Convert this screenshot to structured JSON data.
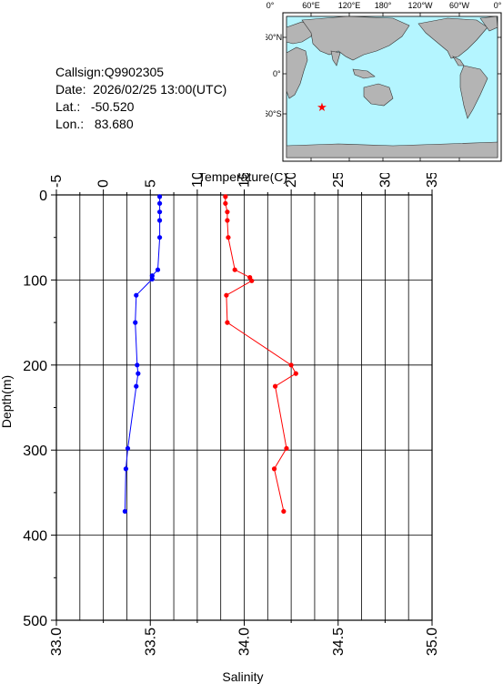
{
  "info": {
    "callsign_label": "Callsign:",
    "callsign": "Q9902305",
    "date_label": "Date:",
    "date": "2026/02/25 13:00(UTC)",
    "lat_label": "Lat.:",
    "lat": "-50.520",
    "lon_label": "Lon.:",
    "lon": "83.680"
  },
  "map": {
    "top_labels": [
      "0°",
      "60°E",
      "120°E",
      "180°",
      "120°W",
      "60°W",
      "0°"
    ],
    "left_labels": [
      "60°N",
      "0°",
      "60°S"
    ],
    "ocean_color": "#b4f5ff",
    "land_color": "#b4b4b4",
    "marker_color": "#ff0000",
    "marker_icon": "star-icon"
  },
  "chart_data": {
    "type": "line",
    "ylabel": "Depth(m)",
    "y_ticks": [
      "0",
      "100",
      "200",
      "300",
      "400",
      "500"
    ],
    "ylim": [
      0,
      500
    ],
    "y_reversed": true,
    "temperature_axis": {
      "label": "Temperature(C)",
      "ticks": [
        "-5",
        "0",
        "5",
        "10",
        "15",
        "20",
        "25",
        "30",
        "35"
      ],
      "range": [
        -5,
        35
      ]
    },
    "salinity_axis": {
      "label": "Salinity",
      "ticks": [
        "33.0",
        "33.5",
        "34.0",
        "34.5",
        "35.0"
      ],
      "range": [
        33.0,
        35.0
      ]
    },
    "grid": true,
    "series": [
      {
        "axis": "salinity",
        "color": "#0000ff",
        "points": [
          [
            33.55,
            2
          ],
          [
            33.55,
            10
          ],
          [
            33.55,
            20
          ],
          [
            33.55,
            30
          ],
          [
            33.55,
            50
          ],
          [
            33.54,
            88
          ],
          [
            33.51,
            95
          ],
          [
            33.51,
            99
          ],
          [
            33.425,
            118
          ],
          [
            33.42,
            150
          ],
          [
            33.43,
            200
          ],
          [
            33.435,
            210
          ],
          [
            33.425,
            225
          ],
          [
            33.38,
            298
          ],
          [
            33.37,
            322
          ],
          [
            33.365,
            372
          ]
        ]
      },
      {
        "axis": "temperature",
        "color": "#ff0000",
        "points": [
          [
            13.0,
            2
          ],
          [
            13.0,
            10
          ],
          [
            13.2,
            20
          ],
          [
            13.2,
            30
          ],
          [
            13.3,
            50
          ],
          [
            14.0,
            88
          ],
          [
            15.6,
            97
          ],
          [
            15.8,
            101
          ],
          [
            13.1,
            118
          ],
          [
            13.2,
            150
          ],
          [
            20.0,
            200
          ],
          [
            20.5,
            210
          ],
          [
            18.3,
            225
          ],
          [
            19.5,
            298
          ],
          [
            18.2,
            322
          ],
          [
            19.2,
            372
          ]
        ]
      }
    ]
  }
}
